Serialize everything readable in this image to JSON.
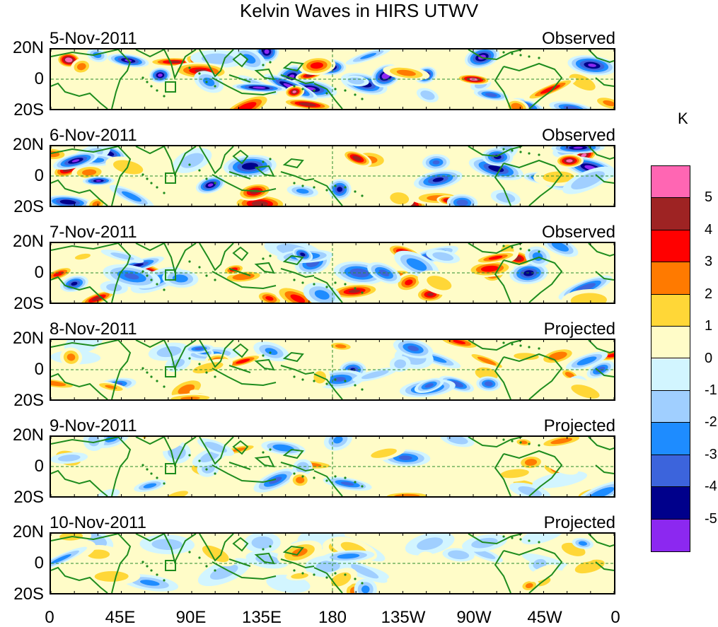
{
  "title": "Kelvin Waves in HIRS UTWV",
  "panels": [
    {
      "date": "5-Nov-2011",
      "kind": "Observed",
      "seed": 1
    },
    {
      "date": "6-Nov-2011",
      "kind": "Observed",
      "seed": 2
    },
    {
      "date": "7-Nov-2011",
      "kind": "Observed",
      "seed": 3
    },
    {
      "date": "8-Nov-2011",
      "kind": "Projected",
      "seed": 4
    },
    {
      "date": "9-Nov-2011",
      "kind": "Projected",
      "seed": 5
    },
    {
      "date": "10-Nov-2011",
      "kind": "Projected",
      "seed": 6
    }
  ],
  "lat_labels": [
    "20N",
    "0",
    "20S"
  ],
  "lon_labels": [
    "0",
    "45E",
    "90E",
    "135E",
    "180",
    "135W",
    "90W",
    "45W",
    "0"
  ],
  "colorbar": {
    "unit": "K",
    "levels": [
      "5",
      "4",
      "3",
      "2",
      "1",
      "0",
      "-1",
      "-2",
      "-3",
      "-4",
      "-5"
    ],
    "colors": [
      "#ff66b3",
      "#9e2323",
      "#ff0000",
      "#ff7a00",
      "#ffd737",
      "#fffcc8",
      "#d2f5ff",
      "#a0cfff",
      "#1e8cff",
      "#3c64dc",
      "#00008b",
      "#8c28f0"
    ]
  },
  "land_color": "#1e8c1e"
}
